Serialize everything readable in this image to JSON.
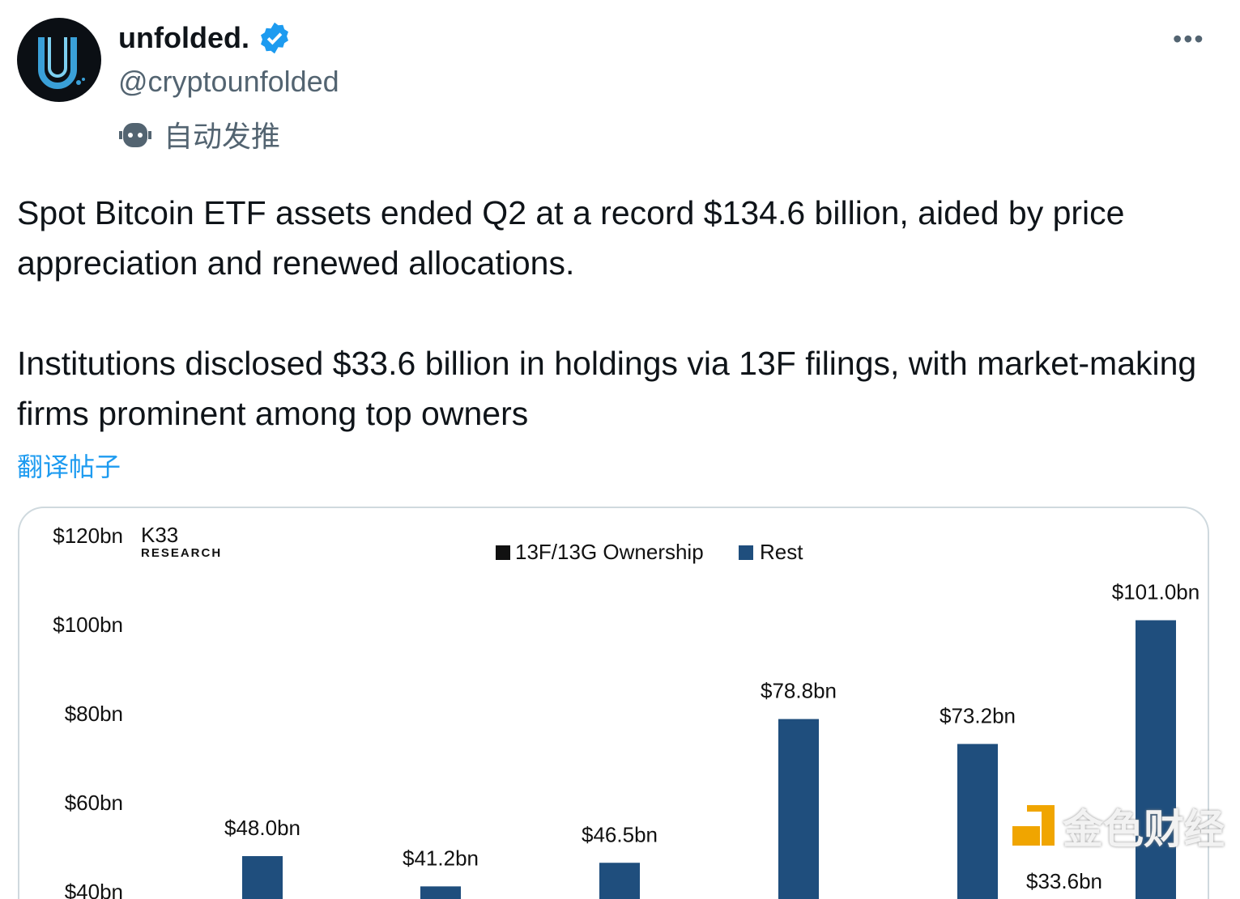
{
  "tweet": {
    "display_name": "unfolded.",
    "handle": "@cryptounfolded",
    "automated_label": "自动发推",
    "paragraphs": [
      "Spot Bitcoin ETF assets ended Q2 at a record $134.6 billion, aided by price appreciation and renewed allocations.",
      "Institutions disclosed $33.6 billion in holdings via 13F filings, with market-making firms prominent among top owners"
    ],
    "translate_label": "翻译帖子",
    "more_label": "•••",
    "verified_color": "#1d9bf0"
  },
  "watermark": {
    "text": "金色财经"
  },
  "chart_data": {
    "type": "bar",
    "brand": "K33 RESEARCH",
    "legend": [
      "13F/13G Ownership",
      "Rest"
    ],
    "legend_placement": "top-center",
    "colors": {
      "13F/13G Ownership": "#111111",
      "Rest": "#1f4e7d"
    },
    "y_ticks": [
      "$40bn",
      "$60bn",
      "$80bn",
      "$100bn",
      "$120bn"
    ],
    "ylim": [
      40,
      120
    ],
    "series": [
      {
        "name": "Rest",
        "values": [
          48.0,
          41.2,
          46.5,
          78.8,
          73.2,
          101.0
        ]
      }
    ],
    "data_labels": [
      "$48.0bn",
      "$41.2bn",
      "$46.5bn",
      "$78.8bn",
      "$73.2bn",
      "$101.0bn"
    ],
    "extra_labels": [
      "$33.6bn"
    ],
    "grid": false
  }
}
